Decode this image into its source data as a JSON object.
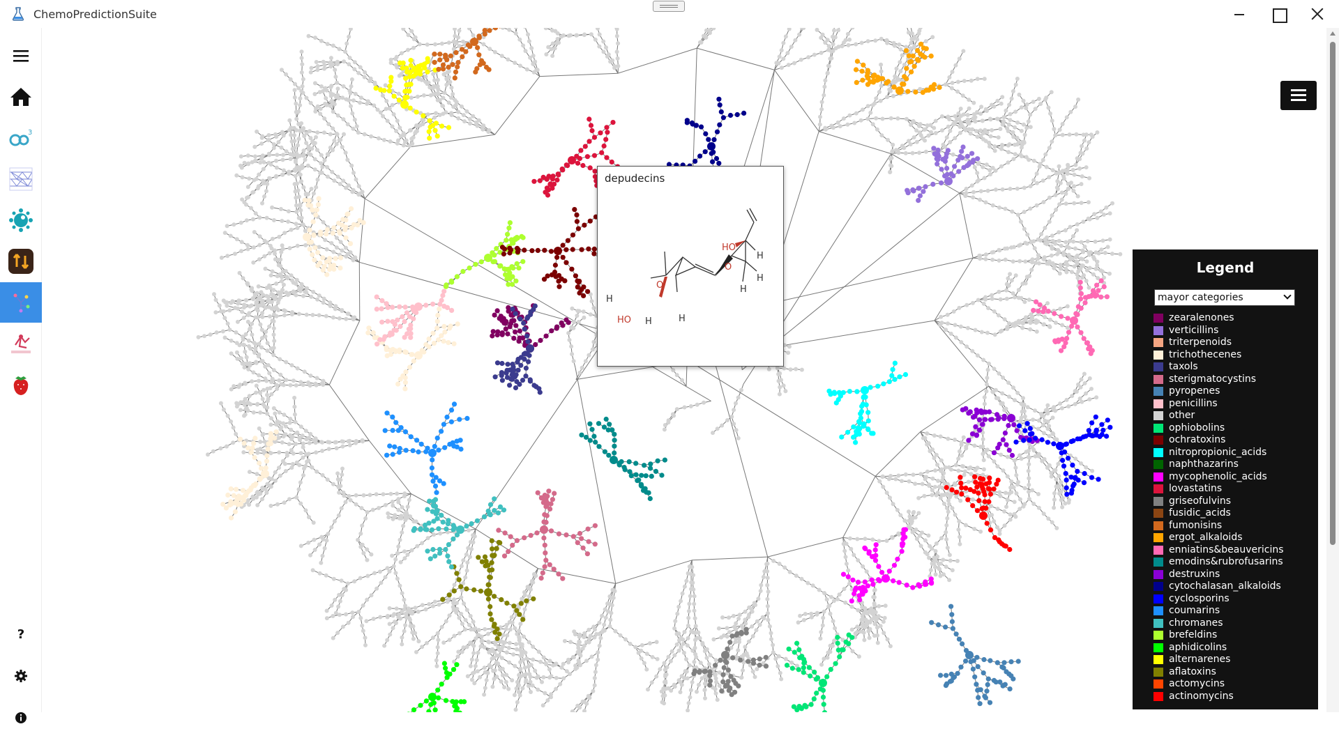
{
  "window": {
    "title": "ChemoPredictionSuite"
  },
  "sidebar": {
    "items": [
      {
        "name": "menu",
        "icon": "hamburger-icon"
      },
      {
        "name": "home",
        "icon": "home-icon"
      },
      {
        "name": "module-2",
        "icon": "cp3-icon"
      },
      {
        "name": "module-3",
        "icon": "layers-network-icon"
      },
      {
        "name": "module-4",
        "icon": "virus-icon"
      },
      {
        "name": "module-5",
        "icon": "cycle-icon"
      },
      {
        "name": "module-6",
        "icon": "tree-graph-icon",
        "active": true
      },
      {
        "name": "module-7",
        "icon": "molecule-logo-icon"
      },
      {
        "name": "module-8",
        "icon": "strawberry-icon"
      }
    ],
    "bottom": [
      {
        "name": "help",
        "icon": "help-icon",
        "label": "?"
      },
      {
        "name": "settings",
        "icon": "gear-icon"
      },
      {
        "name": "info",
        "icon": "info-icon"
      }
    ]
  },
  "popup": {
    "name": "depudecins",
    "atoms": {
      "ho_top": "HO",
      "h_right1": "H",
      "o_upper": "O",
      "h_right2": "H",
      "h_lower": "H",
      "h_left": "H",
      "o_left": "O",
      "ho_bottom": "HO",
      "h_bottom": "H",
      "h_mid": "H"
    }
  },
  "legend": {
    "title": "Legend",
    "select_value": "mayor categories",
    "items": [
      {
        "label": "zearalenones",
        "color": "#800060"
      },
      {
        "label": "verticillins",
        "color": "#9370db"
      },
      {
        "label": "triterpenoids",
        "color": "#f4a582"
      },
      {
        "label": "trichothecenes",
        "color": "#fff0d8"
      },
      {
        "label": "taxols",
        "color": "#3b3b8e"
      },
      {
        "label": "sterigmatocystins",
        "color": "#d46a8a"
      },
      {
        "label": "pyropenes",
        "color": "#4682b4"
      },
      {
        "label": "penicillins",
        "color": "#ffc0cb"
      },
      {
        "label": "other",
        "color": "#d3d3d3"
      },
      {
        "label": "ophiobolins",
        "color": "#00e676"
      },
      {
        "label": "ochratoxins",
        "color": "#7b0000"
      },
      {
        "label": "nitropropionic_acids",
        "color": "#00ffff"
      },
      {
        "label": "naphthazarins",
        "color": "#006400"
      },
      {
        "label": "mycophenolic_acids",
        "color": "#ff00ff"
      },
      {
        "label": "lovastatins",
        "color": "#dc143c"
      },
      {
        "label": "griseofulvins",
        "color": "#808080"
      },
      {
        "label": "fusidic_acids",
        "color": "#8b4513"
      },
      {
        "label": "fumonisins",
        "color": "#d2691e"
      },
      {
        "label": "ergot_alkaloids",
        "color": "#ffa500"
      },
      {
        "label": "enniatins&beauvericins",
        "color": "#ff69b4"
      },
      {
        "label": "emodins&rubrofusarins",
        "color": "#008b8b"
      },
      {
        "label": "destruxins",
        "color": "#8a00d4"
      },
      {
        "label": "cytochalasan_alkaloids",
        "color": "#00008b"
      },
      {
        "label": "cyclosporins",
        "color": "#0000ff"
      },
      {
        "label": "coumarins",
        "color": "#1e90ff"
      },
      {
        "label": "chromanes",
        "color": "#40c0c0"
      },
      {
        "label": "brefeldins",
        "color": "#adff2f"
      },
      {
        "label": "aphidicolins",
        "color": "#00ff00"
      },
      {
        "label": "alternarenes",
        "color": "#ffff00"
      },
      {
        "label": "aflatoxins",
        "color": "#808000"
      },
      {
        "label": "actomycins",
        "color": "#ff4500"
      },
      {
        "label": "actinomycins",
        "color": "#ff0000"
      }
    ]
  }
}
